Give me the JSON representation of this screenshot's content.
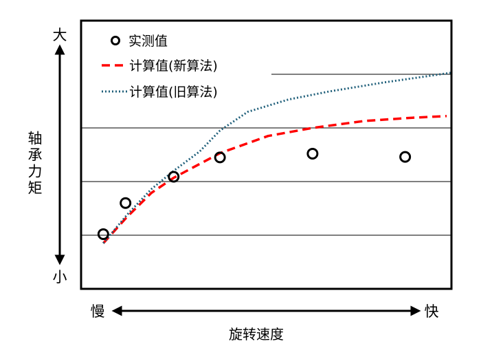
{
  "chart_data": {
    "type": "line",
    "title": "",
    "xlabel": "旋转速度",
    "ylabel": "轴承力矩",
    "x_axis_ends": {
      "low": "慢",
      "high": "快"
    },
    "y_axis_ends": {
      "low": "小",
      "high": "大"
    },
    "xlim": [
      0,
      10
    ],
    "ylim": [
      0,
      5
    ],
    "grid": true,
    "gridlines_y": [
      1,
      2,
      3,
      4
    ],
    "legend_position": "top-left",
    "series": [
      {
        "name": "实测值",
        "style": "markers-open-circle",
        "color": "#000000",
        "x": [
          0.6,
          1.2,
          2.5,
          3.75,
          6.25,
          8.75
        ],
        "y": [
          1.02,
          1.6,
          2.09,
          2.45,
          2.52,
          2.46
        ]
      },
      {
        "name": "计算值(新算法)",
        "style": "dashed",
        "color": "#ff0000",
        "x": [
          0.6,
          1.24,
          1.9,
          2.5,
          3.75,
          5.05,
          6.25,
          7.65,
          8.94,
          9.87
        ],
        "y": [
          0.85,
          1.34,
          1.79,
          2.07,
          2.53,
          2.85,
          3.0,
          3.13,
          3.19,
          3.22
        ]
      },
      {
        "name": "计算值(旧算法)",
        "style": "dotted",
        "color": "#1f5f7a",
        "x": [
          0.6,
          1.24,
          1.9,
          2.5,
          3.2,
          3.75,
          4.5,
          5.6,
          6.7,
          8.2,
          10
        ],
        "y": [
          0.85,
          1.38,
          1.86,
          2.2,
          2.56,
          2.95,
          3.3,
          3.53,
          3.68,
          3.85,
          4.03
        ]
      }
    ]
  }
}
